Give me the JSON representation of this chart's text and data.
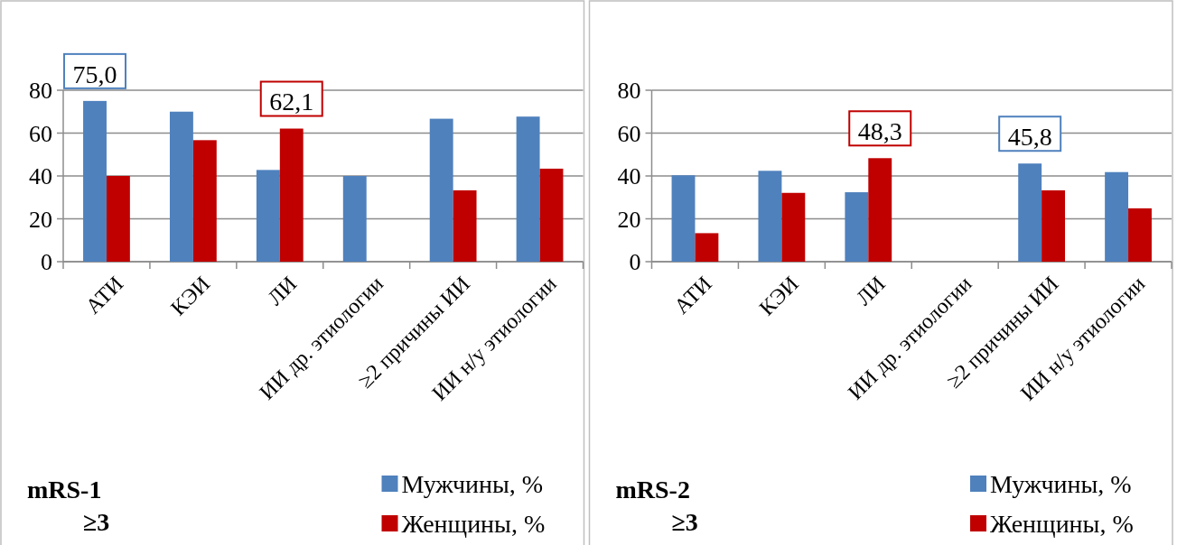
{
  "chart_data": [
    {
      "type": "bar",
      "title": "mRS-1",
      "subtitle": "≥3",
      "categories": [
        "АТИ",
        "КЭИ",
        "ЛИ",
        "ИИ др. этиологии",
        "≥2 причины ИИ",
        "ИИ н/у этиологии"
      ],
      "series": [
        {
          "name": "Мужчины, %",
          "color": "#4f81bd",
          "values": [
            75.0,
            70.0,
            42.8,
            40,
            66.7,
            67.7
          ],
          "value_labels": [
            "75,0",
            null,
            null,
            null,
            null,
            null
          ]
        },
        {
          "name": "Женщины, %",
          "color": "#c00000",
          "values": [
            40,
            56.7,
            62.1,
            null,
            33.3,
            43.4
          ],
          "value_labels": [
            null,
            null,
            "62,1",
            null,
            null,
            null
          ]
        }
      ],
      "ylim": [
        0,
        80
      ],
      "yticks": [
        0,
        20,
        40,
        60,
        80
      ],
      "grid": "y",
      "legend": "bottom right"
    },
    {
      "type": "bar",
      "title": "mRS-2",
      "subtitle": "≥3",
      "categories": [
        "АТИ",
        "КЭИ",
        "ЛИ",
        "ИИ др. этиологии",
        "≥2 причины ИИ",
        "ИИ н/у этиологии"
      ],
      "series": [
        {
          "name": "Мужчины, %",
          "color": "#4f81bd",
          "values": [
            40.3,
            42.4,
            32.4,
            null,
            45.8,
            41.8
          ],
          "value_labels": [
            null,
            null,
            null,
            null,
            "45,8",
            null
          ]
        },
        {
          "name": "Женщины, %",
          "color": "#c00000",
          "values": [
            13.3,
            32.1,
            48.3,
            null,
            33.3,
            24.9
          ],
          "value_labels": [
            null,
            null,
            "48,3",
            null,
            null,
            null
          ]
        }
      ],
      "ylim": [
        0,
        80
      ],
      "yticks": [
        0,
        20,
        40,
        60,
        80
      ],
      "grid": "y",
      "legend": "bottom right"
    }
  ]
}
